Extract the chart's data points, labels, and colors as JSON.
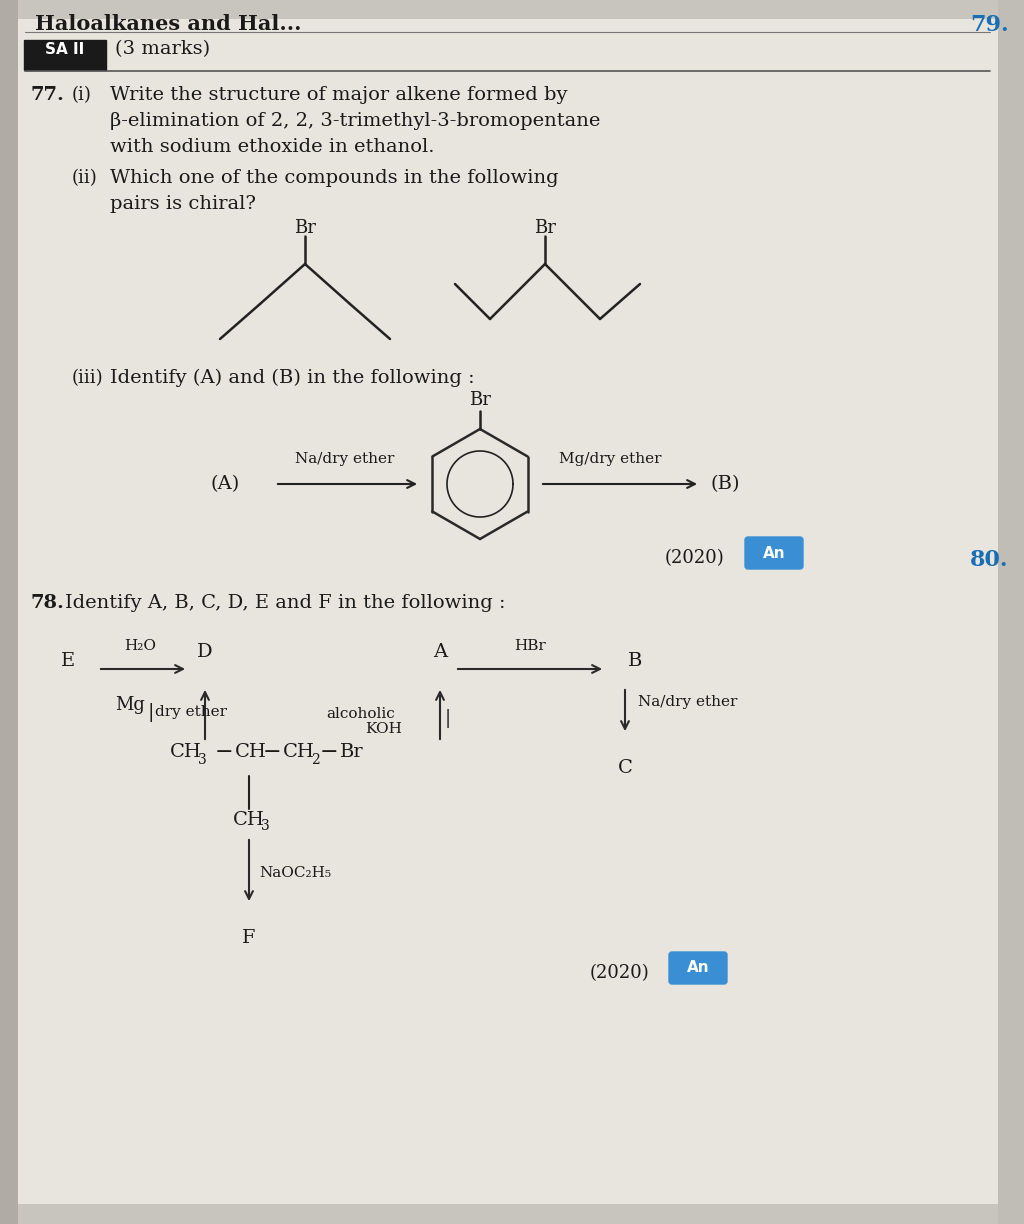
{
  "bg_color": "#c8c5bf",
  "content_bg": "#e8e5df",
  "font_color": "#1a1a1a",
  "blue_color": "#1a6eb5",
  "an_bg": "#3a8fd4",
  "title": "Haloalkanes and Hal...",
  "page79": "79.",
  "page80": "80.",
  "sa_label": "SA II",
  "marks": "(3 marks)"
}
